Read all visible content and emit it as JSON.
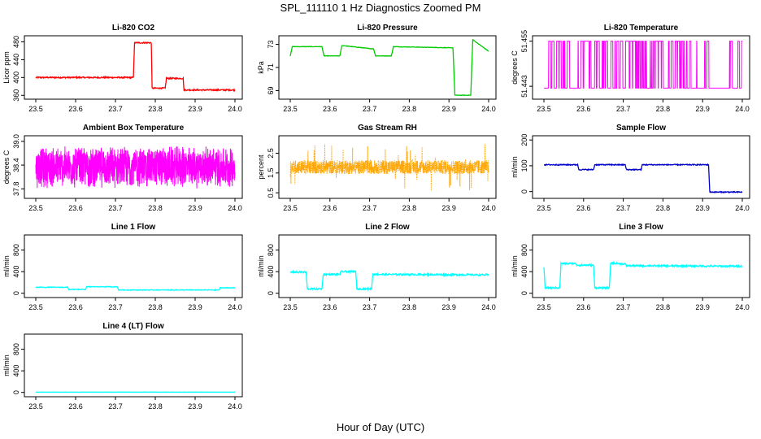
{
  "title": "SPL_111110  1 Hz Diagnostics Zoomed PM",
  "xlabel": "Hour of Day (UTC)",
  "chart_data": [
    {
      "type": "line",
      "title": "Li-820 CO2",
      "ylabel": "Licor ppm",
      "xlim": [
        23.5,
        24.0
      ],
      "ylim": [
        355,
        490
      ],
      "xticks": [
        "23.5",
        "23.6",
        "23.7",
        "23.8",
        "23.9",
        "24.0"
      ],
      "yticks": [
        {
          "v": 360,
          "label": "360"
        },
        {
          "v": 400,
          "label": "400"
        },
        {
          "v": 440,
          "label": "440"
        },
        {
          "v": 480,
          "label": "480"
        }
      ],
      "color": "#ff0000",
      "noise": 1.5,
      "style": "line",
      "series": [
        {
          "x": [
            23.5,
            23.745,
            23.748,
            23.79,
            23.792,
            23.825,
            23.828,
            23.87,
            23.872,
            24.0
          ],
          "y": [
            400,
            400,
            478,
            478,
            376,
            376,
            398,
            398,
            372,
            372
          ]
        }
      ]
    },
    {
      "type": "line",
      "title": "Li-820 Pressure",
      "ylabel": "kPa",
      "xlim": [
        23.5,
        24.0
      ],
      "ylim": [
        68.4,
        73.6
      ],
      "xticks": [
        "23.5",
        "23.6",
        "23.7",
        "23.8",
        "23.9",
        "24.0"
      ],
      "yticks": [
        {
          "v": 69,
          "label": "69"
        },
        {
          "v": 71,
          "label": "71"
        },
        {
          "v": 73,
          "label": "73"
        }
      ],
      "color": "#00cc00",
      "noise": 0.02,
      "style": "line",
      "series": [
        {
          "x": [
            23.5,
            23.505,
            23.58,
            23.585,
            23.625,
            23.63,
            23.71,
            23.715,
            23.755,
            23.76,
            23.91,
            23.915,
            23.955,
            23.96,
            24.0
          ],
          "y": [
            72.0,
            72.8,
            72.8,
            72.0,
            72.0,
            72.9,
            72.6,
            72.0,
            72.0,
            72.8,
            72.7,
            68.6,
            68.6,
            73.4,
            72.4
          ]
        }
      ]
    },
    {
      "type": "line",
      "title": "Li-820 Temperature",
      "ylabel": "degrees C",
      "xlim": [
        23.5,
        24.0
      ],
      "ylim": [
        51.44,
        51.456
      ],
      "xticks": [
        "23.5",
        "23.6",
        "23.7",
        "23.8",
        "23.9",
        "24.0"
      ],
      "yticks": [
        {
          "v": 51.443,
          "label": "51.443"
        },
        {
          "v": 51.455,
          "label": "51.455"
        }
      ],
      "color": "#ff00ff",
      "style": "toggle",
      "low": 51.4425,
      "high": 51.455,
      "series": []
    },
    {
      "type": "line",
      "title": "Ambient Box Temperature",
      "ylabel": "degrees C",
      "xlim": [
        23.5,
        24.0
      ],
      "ylim": [
        37.6,
        39.1
      ],
      "xticks": [
        "23.5",
        "23.6",
        "23.7",
        "23.8",
        "23.9",
        "24.0"
      ],
      "yticks": [
        {
          "v": 37.8,
          "label": "37.8"
        },
        {
          "v": 38.4,
          "label": "38.4"
        },
        {
          "v": 39.0,
          "label": "39.0"
        }
      ],
      "color": "#ff00ff",
      "style": "noise-band",
      "center": 38.35,
      "amp": 0.55,
      "series": []
    },
    {
      "type": "line",
      "title": "Gas Stream RH",
      "ylabel": "percent",
      "xlim": [
        23.5,
        24.0
      ],
      "ylim": [
        0.3,
        3.3
      ],
      "xticks": [
        "23.5",
        "23.6",
        "23.7",
        "23.8",
        "23.9",
        "24.0"
      ],
      "yticks": [
        {
          "v": 0.5,
          "label": "0.5"
        },
        {
          "v": 1.5,
          "label": "1.5"
        },
        {
          "v": 2.5,
          "label": "2.5"
        }
      ],
      "color": "#ffa500",
      "style": "dots-band",
      "center": 1.8,
      "amp": 0.35,
      "series": []
    },
    {
      "type": "line",
      "title": "Sample Flow",
      "ylabel": "ml/min",
      "xlim": [
        23.5,
        24.0
      ],
      "ylim": [
        -20,
        210
      ],
      "xticks": [
        "23.5",
        "23.6",
        "23.7",
        "23.8",
        "23.9",
        "24.0"
      ],
      "yticks": [
        {
          "v": 0,
          "label": "0"
        },
        {
          "v": 100,
          "label": "100"
        },
        {
          "v": 200,
          "label": "200"
        }
      ],
      "color": "#0000cc",
      "noise": 2,
      "style": "line",
      "series": [
        {
          "x": [
            23.5,
            23.585,
            23.588,
            23.625,
            23.628,
            23.705,
            23.708,
            23.745,
            23.748,
            23.915,
            23.918,
            24.0
          ],
          "y": [
            104,
            104,
            85,
            85,
            104,
            104,
            85,
            85,
            104,
            104,
            -2,
            -2
          ]
        }
      ]
    },
    {
      "type": "line",
      "title": "Line 1 Flow",
      "ylabel": "ml/min",
      "xlim": [
        23.5,
        24.0
      ],
      "ylim": [
        -50,
        1050
      ],
      "xticks": [
        "23.5",
        "23.6",
        "23.7",
        "23.8",
        "23.9",
        "24.0"
      ],
      "yticks": [
        {
          "v": 0,
          "label": "0"
        },
        {
          "v": 400,
          "label": "400"
        },
        {
          "v": 800,
          "label": "800"
        }
      ],
      "color": "#00ffff",
      "noise": 6,
      "style": "line",
      "series": [
        {
          "x": [
            23.5,
            23.58,
            23.583,
            23.625,
            23.628,
            23.705,
            23.708,
            23.96,
            23.963,
            24.0
          ],
          "y": [
            110,
            110,
            70,
            70,
            120,
            120,
            60,
            60,
            100,
            100
          ]
        }
      ]
    },
    {
      "type": "line",
      "title": "Line 2 Flow",
      "ylabel": "ml/min",
      "xlim": [
        23.5,
        24.0
      ],
      "ylim": [
        -50,
        1050
      ],
      "xticks": [
        "23.5",
        "23.6",
        "23.7",
        "23.8",
        "23.9",
        "24.0"
      ],
      "yticks": [
        {
          "v": 0,
          "label": "0"
        },
        {
          "v": 400,
          "label": "400"
        },
        {
          "v": 800,
          "label": "800"
        }
      ],
      "color": "#00ffff",
      "noise": 15,
      "style": "line",
      "series": [
        {
          "x": [
            23.5,
            23.54,
            23.543,
            23.58,
            23.583,
            23.625,
            23.628,
            23.665,
            23.668,
            23.705,
            23.708,
            24.0
          ],
          "y": [
            390,
            390,
            80,
            80,
            350,
            350,
            400,
            400,
            80,
            80,
            350,
            340
          ]
        }
      ]
    },
    {
      "type": "line",
      "title": "Line 3 Flow",
      "ylabel": "ml/min",
      "xlim": [
        23.5,
        24.0
      ],
      "ylim": [
        -50,
        1050
      ],
      "xticks": [
        "23.5",
        "23.6",
        "23.7",
        "23.8",
        "23.9",
        "24.0"
      ],
      "yticks": [
        {
          "v": 0,
          "label": "0"
        },
        {
          "v": 400,
          "label": "400"
        },
        {
          "v": 800,
          "label": "800"
        }
      ],
      "color": "#00ffff",
      "noise": 15,
      "style": "line",
      "series": [
        {
          "x": [
            23.5,
            23.503,
            23.54,
            23.543,
            23.58,
            23.583,
            23.625,
            23.628,
            23.665,
            23.668,
            23.705,
            23.708,
            24.0
          ],
          "y": [
            480,
            100,
            100,
            550,
            550,
            520,
            520,
            100,
            100,
            560,
            540,
            510,
            500
          ]
        }
      ]
    },
    {
      "type": "line",
      "title": "Line 4 (LT) Flow",
      "ylabel": "ml/min",
      "xlim": [
        23.5,
        24.0
      ],
      "ylim": [
        -50,
        1050
      ],
      "xticks": [
        "23.5",
        "23.6",
        "23.7",
        "23.8",
        "23.9",
        "24.0"
      ],
      "yticks": [
        {
          "v": 0,
          "label": "0"
        },
        {
          "v": 400,
          "label": "400"
        },
        {
          "v": 800,
          "label": "800"
        }
      ],
      "color": "#00ffff",
      "noise": 2,
      "style": "line",
      "series": [
        {
          "x": [
            23.5,
            24.0
          ],
          "y": [
            5,
            5
          ]
        }
      ]
    }
  ]
}
